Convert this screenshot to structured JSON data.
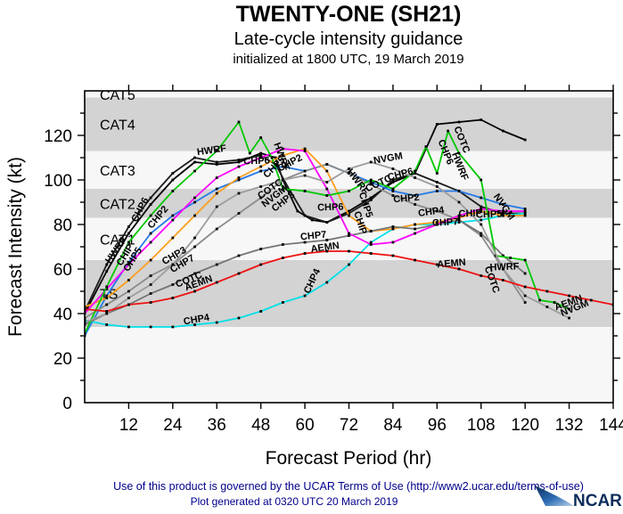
{
  "header": {
    "title": "TWENTY-ONE (SH21)",
    "subtitle": "Late-cycle intensity guidance",
    "init_line": "initialized at 1800 UTC, 19 March 2019"
  },
  "footer": {
    "terms": "Use of this product is governed by the UCAR Terms of Use (http://www2.ucar.edu/terms-of-use)",
    "generated": "Plot generated at 0320 UTC   20 March 2019",
    "logo_text": "NCAR",
    "text_color": "#00008b"
  },
  "chart_data": {
    "type": "line",
    "title": "TWENTY-ONE (SH21) Late-cycle intensity guidance",
    "xlabel": "Forecast Period (hr)",
    "ylabel": "Forecast Intensity (kt)",
    "xlim": [
      0,
      144
    ],
    "ylim": [
      0,
      140
    ],
    "x_ticks": [
      12,
      24,
      36,
      48,
      60,
      72,
      84,
      96,
      108,
      120,
      132,
      144
    ],
    "y_ticks": [
      0,
      20,
      40,
      60,
      80,
      100,
      120
    ],
    "y_minor_step": 10,
    "grid": false,
    "legend_position": "inline-labels",
    "band_colors": {
      "shaded": "#d3d3d3",
      "clear": "#f7f7f7"
    },
    "bands": [
      {
        "label": "",
        "lo": 0,
        "hi": 34,
        "shade": "clear"
      },
      {
        "label": "TS",
        "lo": 34,
        "hi": 64,
        "shade": "shaded",
        "label_color": "#ffffff"
      },
      {
        "label": "CAT1",
        "lo": 64,
        "hi": 83,
        "shade": "clear",
        "label_color": "#d9d9d9"
      },
      {
        "label": "CAT2",
        "lo": 83,
        "hi": 96,
        "shade": "shaded",
        "label_color": "#ffffff"
      },
      {
        "label": "CAT3",
        "lo": 96,
        "hi": 113,
        "shade": "clear",
        "label_color": "#d9d9d9"
      },
      {
        "label": "CAT4",
        "lo": 113,
        "hi": 137,
        "shade": "shaded",
        "label_color": "#ffffff"
      },
      {
        "label": "CAT5",
        "lo": 137,
        "hi": 140,
        "shade": "clear",
        "label_color": "#d9d9d9"
      }
    ],
    "series": [
      {
        "name": "HWRF",
        "color": "#000000",
        "x": [
          0,
          6,
          12,
          18,
          24,
          30,
          36,
          42,
          48,
          52,
          54,
          58,
          62,
          66,
          72,
          78,
          84,
          90,
          96,
          102,
          108,
          114,
          120
        ],
        "y": [
          40,
          59,
          76,
          89,
          100,
          108,
          107,
          108,
          112,
          110,
          100,
          86,
          82,
          81,
          86,
          92,
          99,
          103,
          125,
          126,
          127,
          122,
          118
        ]
      },
      {
        "name": "CHP6",
        "color": "#1c1c1c",
        "x": [
          0,
          6,
          12,
          18,
          24,
          30,
          36,
          42,
          48,
          52,
          56,
          60,
          66,
          72,
          78,
          84,
          90,
          96,
          102,
          108,
          114,
          120
        ],
        "y": [
          41,
          62,
          79,
          92,
          103,
          110,
          108,
          109,
          111,
          107,
          95,
          84,
          81,
          85,
          91,
          100,
          103,
          99,
          95,
          88,
          85,
          85
        ]
      },
      {
        "name": "CHP2",
        "color": "#2579e6",
        "x": [
          0,
          6,
          12,
          18,
          24,
          30,
          36,
          42,
          48,
          54,
          60,
          66,
          72,
          78,
          84,
          90,
          96,
          102,
          108,
          114,
          120
        ],
        "y": [
          30,
          48,
          63,
          76,
          84,
          90,
          96,
          100,
          104,
          106,
          104,
          107,
          103,
          99,
          95,
          93,
          95,
          95,
          92,
          89,
          87
        ]
      },
      {
        "name": "CHP3",
        "color": "#8c8c8c",
        "x": [
          0,
          6,
          12,
          18,
          24,
          30,
          36,
          42,
          48,
          54,
          60,
          66,
          72,
          78,
          84,
          90,
          96,
          102,
          108,
          114,
          120
        ],
        "y": [
          38,
          44,
          50,
          57,
          62,
          70,
          78,
          85,
          92,
          100,
          104,
          107,
          103,
          98,
          93,
          89,
          86,
          82,
          75,
          60,
          45
        ]
      },
      {
        "name": "CHP4",
        "color": "#00dfe8",
        "x": [
          0,
          6,
          12,
          18,
          24,
          30,
          36,
          42,
          48,
          54,
          60,
          66,
          72,
          78,
          84,
          90,
          96,
          102,
          108,
          114,
          120
        ],
        "y": [
          37,
          35,
          34,
          34,
          34,
          35,
          36,
          38,
          41,
          45,
          48,
          54,
          62,
          72,
          78,
          80,
          80,
          81,
          82,
          84,
          85
        ]
      },
      {
        "name": "CHP5",
        "color": "#ff9e1b",
        "x": [
          0,
          6,
          12,
          18,
          24,
          30,
          36,
          42,
          48,
          54,
          60,
          66,
          72,
          78,
          84,
          90,
          96,
          102,
          108,
          114,
          120
        ],
        "y": [
          43,
          47,
          55,
          64,
          74,
          84,
          94,
          101,
          106,
          111,
          114,
          104,
          84,
          77,
          78,
          80,
          81,
          83,
          86,
          84,
          84
        ]
      },
      {
        "name": "CHP7",
        "color": "#757575",
        "x": [
          0,
          6,
          12,
          18,
          24,
          30,
          36,
          42,
          48,
          54,
          60,
          66,
          72,
          78,
          84,
          90,
          96,
          102,
          108,
          114,
          120
        ],
        "y": [
          35,
          40,
          44,
          49,
          53,
          58,
          62,
          66,
          69,
          71,
          72,
          73,
          75,
          77,
          79,
          78,
          80,
          82,
          76,
          66,
          58
        ]
      },
      {
        "name": "CHIP",
        "color": "#ff00ff",
        "x": [
          0,
          6,
          12,
          18,
          24,
          30,
          36,
          42,
          48,
          54,
          60,
          66,
          72,
          78,
          84,
          90,
          96,
          102,
          108,
          114,
          120
        ],
        "y": [
          40,
          51,
          62,
          72,
          82,
          92,
          101,
          106,
          110,
          114,
          113,
          96,
          76,
          71,
          72,
          76,
          80,
          84,
          87,
          86,
          86
        ]
      },
      {
        "name": "COTC",
        "color": "#00c800",
        "x": [
          0,
          6,
          12,
          18,
          24,
          30,
          36,
          42,
          45,
          48,
          51,
          54,
          60,
          66,
          72,
          78,
          84,
          90,
          93,
          96,
          99,
          102,
          108,
          112,
          116,
          120,
          124,
          128,
          132
        ],
        "y": [
          31,
          52,
          72,
          84,
          95,
          104,
          113,
          126,
          112,
          119,
          110,
          96,
          95,
          93,
          95,
          100,
          96,
          104,
          115,
          103,
          122,
          112,
          100,
          66,
          65,
          64,
          46,
          45,
          42
        ]
      },
      {
        "name": "NVGM",
        "color": "#9c9c9c",
        "x": [
          0,
          6,
          12,
          18,
          24,
          30,
          36,
          42,
          48,
          54,
          60,
          66,
          72,
          78,
          84,
          90,
          96,
          102,
          108,
          114,
          120,
          126,
          132
        ],
        "y": [
          36,
          40,
          47,
          53,
          62,
          74,
          88,
          94,
          97,
          100,
          102,
          99,
          105,
          108,
          105,
          101,
          97,
          90,
          80,
          60,
          48,
          43,
          38
        ]
      },
      {
        "name": "AEMN",
        "color": "#ee1111",
        "x": [
          0,
          6,
          12,
          18,
          24,
          30,
          36,
          42,
          48,
          54,
          60,
          66,
          72,
          78,
          84,
          90,
          96,
          102,
          108,
          114,
          120,
          126,
          132,
          138,
          144
        ],
        "y": [
          42,
          41,
          44,
          45,
          47,
          50,
          54,
          58,
          62,
          65,
          67,
          68,
          68,
          67,
          66,
          64,
          62,
          60,
          57,
          55,
          52,
          50,
          48,
          46,
          44
        ]
      }
    ],
    "line_labels": [
      {
        "text": "CHP6",
        "t": 15.8,
        "kt": 86,
        "rot": -62
      },
      {
        "text": "CHP2",
        "t": 20.6,
        "kt": 82.4,
        "rot": -50
      },
      {
        "text": "HWRF",
        "t": 9.2,
        "kt": 67.6,
        "rot": -55
      },
      {
        "text": "CHIP",
        "t": 11.7,
        "kt": 65.6,
        "rot": -58
      },
      {
        "text": "CHP5",
        "t": 13.8,
        "kt": 63.6,
        "rot": -58
      },
      {
        "text": "CHP3",
        "t": 24.8,
        "kt": 64.8,
        "rot": -30
      },
      {
        "text": "CHP7",
        "t": 27,
        "kt": 61.2,
        "rot": -30
      },
      {
        "text": "COTC",
        "t": 28.7,
        "kt": 54,
        "rot": -22
      },
      {
        "text": "AEMN",
        "t": 31.3,
        "kt": 52.4,
        "rot": -20
      },
      {
        "text": "CHP4",
        "t": 30.6,
        "kt": 36,
        "rot": -10
      },
      {
        "text": "HWRF",
        "t": 34.7,
        "kt": 112,
        "rot": -8
      },
      {
        "text": "CHP6",
        "t": 46.9,
        "kt": 107.2,
        "rot": -2
      },
      {
        "text": "HWRF",
        "t": 52.9,
        "kt": 110,
        "rot": 70
      },
      {
        "text": "CHP5",
        "t": 52.2,
        "kt": 104.8,
        "rot": -45
      },
      {
        "text": "CHP2",
        "t": 56.3,
        "kt": 106.4,
        "rot": -28
      },
      {
        "text": "COTC",
        "t": 51,
        "kt": 94.8,
        "rot": -35
      },
      {
        "text": "NVGM",
        "t": 52.2,
        "kt": 91.6,
        "rot": -38
      },
      {
        "text": "CHP3",
        "t": 54.6,
        "kt": 89.2,
        "rot": -38
      },
      {
        "text": "CHP7",
        "t": 62.4,
        "kt": 73.6,
        "rot": -6
      },
      {
        "text": "AEMN",
        "t": 65.6,
        "kt": 68.4,
        "rot": -8
      },
      {
        "text": "CHP4",
        "t": 62.7,
        "kt": 54,
        "rot": -65
      },
      {
        "text": "CHP6",
        "t": 67,
        "kt": 86.4,
        "rot": -2
      },
      {
        "text": "HWRF",
        "t": 73.8,
        "kt": 98.4,
        "rot": 52
      },
      {
        "text": "CHP5",
        "t": 75.8,
        "kt": 88.4,
        "rot": 72
      },
      {
        "text": "CHIP",
        "t": 74.3,
        "kt": 80.4,
        "rot": 72
      },
      {
        "text": "COTC",
        "t": 80.4,
        "kt": 97.2,
        "rot": -25
      },
      {
        "text": "NVGM",
        "t": 82.8,
        "kt": 108.4,
        "rot": -10
      },
      {
        "text": "CHP6",
        "t": 86.2,
        "kt": 101.2,
        "rot": -15
      },
      {
        "text": "CHP2",
        "t": 87.7,
        "kt": 90.4,
        "rot": -5
      },
      {
        "text": "CHP4",
        "t": 94.5,
        "kt": 84.4,
        "rot": -8
      },
      {
        "text": "CHP7",
        "t": 98.3,
        "kt": 79.6,
        "rot": -3
      },
      {
        "text": "CHIP",
        "t": 105.1,
        "kt": 83.6,
        "rot": -2
      },
      {
        "text": "CHP5",
        "t": 110.2,
        "kt": 83.2,
        "rot": -2
      },
      {
        "text": "CHP6",
        "t": 97.6,
        "kt": 112,
        "rot": 68
      },
      {
        "text": "COTC",
        "t": 102,
        "kt": 117.6,
        "rot": 68
      },
      {
        "text": "HWRF",
        "t": 101.5,
        "kt": 105.6,
        "rot": 68
      },
      {
        "text": "NVGM",
        "t": 113.6,
        "kt": 87.2,
        "rot": 55
      },
      {
        "text": "AEMN",
        "t": 100,
        "kt": 61.2,
        "rot": -5
      },
      {
        "text": "HWRF",
        "t": 114.4,
        "kt": 59.6,
        "rot": -2
      },
      {
        "text": "COTC",
        "t": 110.2,
        "kt": 54.8,
        "rot": 70
      },
      {
        "text": "AEMN",
        "t": 132.1,
        "kt": 43.6,
        "rot": -20
      },
      {
        "text": "NVGM",
        "t": 133.8,
        "kt": 41.2,
        "rot": -22
      }
    ]
  }
}
